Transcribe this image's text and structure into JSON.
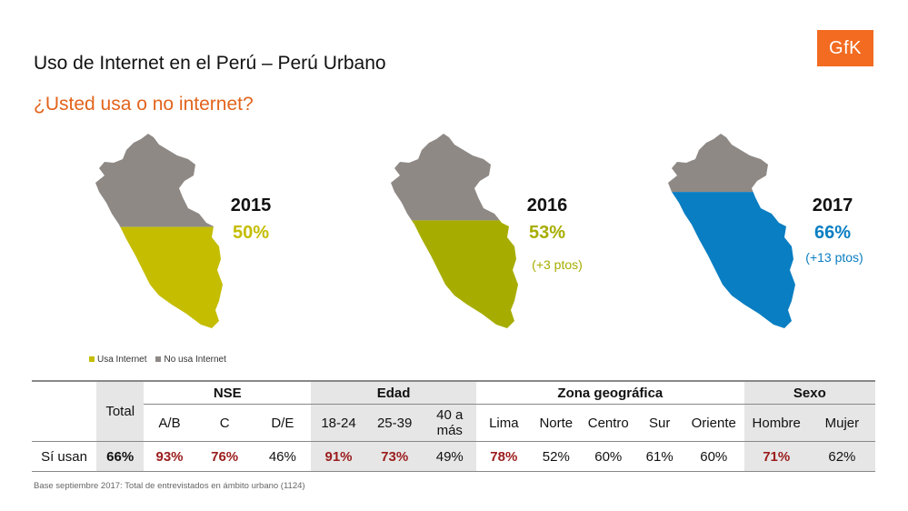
{
  "header": {
    "title": "Uso de Internet en el Perú – Perú Urbano",
    "subtitle": "¿Usted usa o no internet?",
    "logo_text": "GfK"
  },
  "colors": {
    "usa_2015": "#c4bd00",
    "usa_2016": "#a7ad00",
    "usa_2017": "#0a7ec2",
    "no_usa": "#8e8985",
    "accent": "#e2641c",
    "highlight": "#9b1c1c"
  },
  "chart_data": {
    "type": "table",
    "maps": [
      {
        "year": "2015",
        "value": 50,
        "label": "50%",
        "delta": ""
      },
      {
        "year": "2016",
        "value": 53,
        "label": "53%",
        "delta": "(+3 ptos)"
      },
      {
        "year": "2017",
        "value": 66,
        "label": "66%",
        "delta": "(+13 ptos)"
      }
    ],
    "legend": [
      "Usa Internet",
      "No usa Internet"
    ],
    "table": {
      "total_label": "Total",
      "row_label": "Sí usan",
      "total_value": "66%",
      "groups": [
        {
          "name": "NSE",
          "columns": [
            "A/B",
            "C",
            "D/E"
          ],
          "values": [
            "93%",
            "76%",
            "46%"
          ],
          "highlight": [
            true,
            true,
            false
          ]
        },
        {
          "name": "Edad",
          "columns": [
            "18-24",
            "25-39",
            "40 a más"
          ],
          "values": [
            "91%",
            "73%",
            "49%"
          ],
          "highlight": [
            true,
            true,
            false
          ]
        },
        {
          "name": "Zona geográfica",
          "columns": [
            "Lima",
            "Norte",
            "Centro",
            "Sur",
            "Oriente"
          ],
          "values": [
            "78%",
            "52%",
            "60%",
            "61%",
            "60%"
          ],
          "highlight": [
            true,
            false,
            false,
            false,
            false
          ]
        },
        {
          "name": "Sexo",
          "columns": [
            "Hombre",
            "Mujer"
          ],
          "values": [
            "71%",
            "62%"
          ],
          "highlight": [
            true,
            false
          ]
        }
      ]
    }
  },
  "footer": {
    "note": "Base septiembre 2017: Total de entrevistados en ámbito urbano (1124)"
  }
}
